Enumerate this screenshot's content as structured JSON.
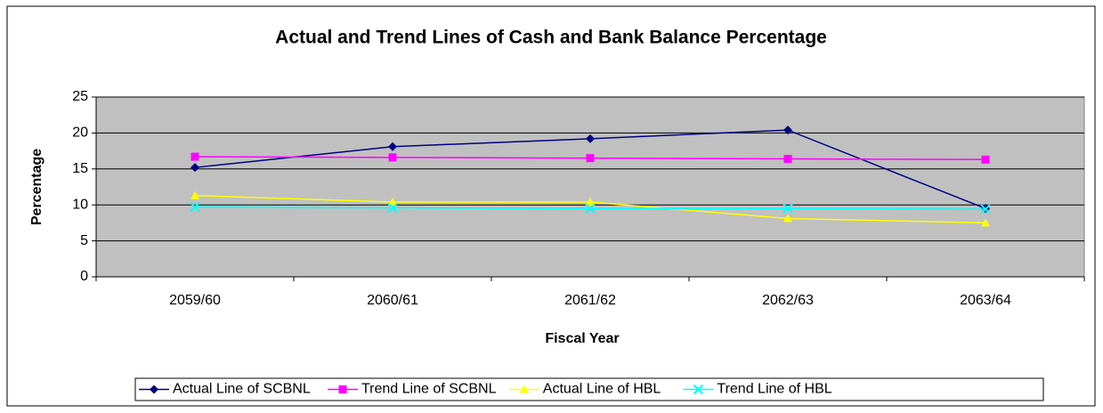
{
  "chart_data": {
    "type": "line",
    "title": "Actual and Trend Lines of Cash and Bank Balance Percentage",
    "x_label": "Fiscal Year",
    "y_label": "Percentage",
    "categories": [
      "2059/60",
      "2060/61",
      "2061/62",
      "2062/63",
      "2063/64"
    ],
    "series": [
      {
        "name": "Actual Line of SCBNL",
        "color": "#000080",
        "marker": "diamond",
        "values": [
          15.2,
          18.1,
          19.2,
          20.4,
          9.5
        ]
      },
      {
        "name": "Trend Line of SCBNL",
        "color": "#ff00ff",
        "marker": "square",
        "values": [
          16.7,
          16.6,
          16.5,
          16.4,
          16.3
        ]
      },
      {
        "name": "Actual Line of HBL",
        "color": "#ffff00",
        "marker": "triangle",
        "values": [
          11.3,
          10.4,
          10.4,
          8.1,
          7.5
        ]
      },
      {
        "name": "Trend Line of HBL",
        "color": "#00ffff",
        "marker": "x",
        "values": [
          9.7,
          9.6,
          9.5,
          9.5,
          9.4
        ]
      }
    ],
    "ylim": [
      0,
      25
    ],
    "yticks": [
      0,
      5,
      10,
      15,
      20,
      25
    ],
    "grid": true,
    "plot_background": "#c0c0c0",
    "legend": "bottom"
  }
}
